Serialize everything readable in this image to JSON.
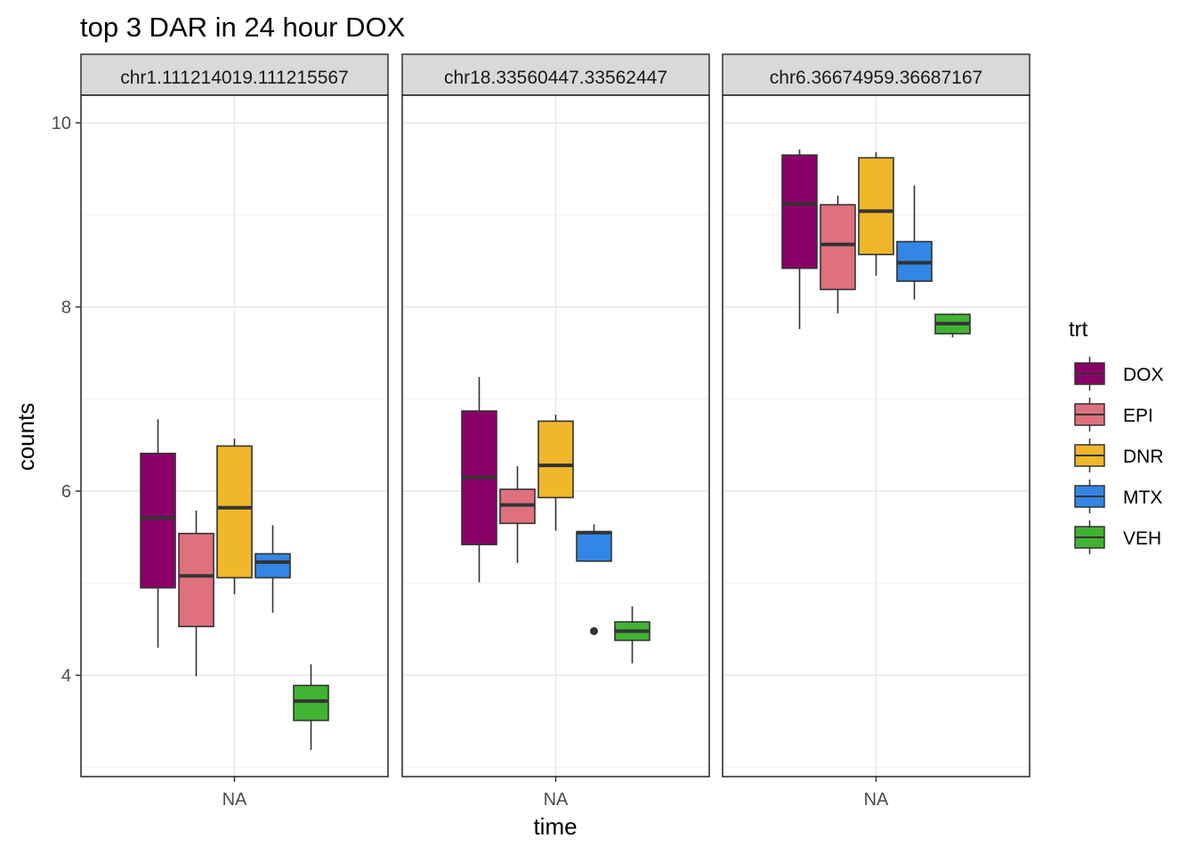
{
  "chart_data": {
    "type": "boxplot",
    "title": "top 3 DAR in 24 hour DOX",
    "xlabel": "time",
    "ylabel": "counts",
    "x_tick_label": "NA",
    "ylim": [
      2.9,
      10.3
    ],
    "y_ticks": [
      4,
      6,
      8,
      10
    ],
    "grid": true,
    "legend": {
      "title": "trt",
      "position": "right",
      "items": [
        {
          "name": "DOX",
          "color": "#8B0068"
        },
        {
          "name": "EPI",
          "color": "#DF707E"
        },
        {
          "name": "DNR",
          "color": "#F1B72B"
        },
        {
          "name": "MTX",
          "color": "#3386E6"
        },
        {
          "name": "VEH",
          "color": "#41B333"
        }
      ]
    },
    "panels": [
      {
        "strip": "chr1.111214019.111215567",
        "boxes": [
          {
            "trt": "DOX",
            "min": 4.3,
            "q1": 4.95,
            "median": 5.71,
            "q3": 6.41,
            "max": 6.78,
            "outliers": []
          },
          {
            "trt": "EPI",
            "min": 3.99,
            "q1": 4.53,
            "median": 5.08,
            "q3": 5.54,
            "max": 5.79,
            "outliers": []
          },
          {
            "trt": "DNR",
            "min": 4.88,
            "q1": 5.06,
            "median": 5.82,
            "q3": 6.49,
            "max": 6.57,
            "outliers": []
          },
          {
            "trt": "MTX",
            "min": 4.68,
            "q1": 5.06,
            "median": 5.23,
            "q3": 5.32,
            "max": 5.63,
            "outliers": []
          },
          {
            "trt": "VEH",
            "min": 3.19,
            "q1": 3.51,
            "median": 3.72,
            "q3": 3.89,
            "max": 4.12,
            "outliers": []
          }
        ]
      },
      {
        "strip": "chr18.33560447.33562447",
        "boxes": [
          {
            "trt": "DOX",
            "min": 5.01,
            "q1": 5.42,
            "median": 6.15,
            "q3": 6.87,
            "max": 7.24,
            "outliers": []
          },
          {
            "trt": "EPI",
            "min": 5.22,
            "q1": 5.65,
            "median": 5.85,
            "q3": 6.02,
            "max": 6.27,
            "outliers": []
          },
          {
            "trt": "DNR",
            "min": 5.57,
            "q1": 5.93,
            "median": 6.28,
            "q3": 6.76,
            "max": 6.83,
            "outliers": []
          },
          {
            "trt": "MTX",
            "min": 5.24,
            "q1": 5.24,
            "median": 5.55,
            "q3": 5.56,
            "max": 5.64,
            "outliers": [
              4.48
            ]
          },
          {
            "trt": "VEH",
            "min": 4.13,
            "q1": 4.38,
            "median": 4.48,
            "q3": 4.58,
            "max": 4.75,
            "outliers": []
          }
        ]
      },
      {
        "strip": "chr6.36674959.36687167",
        "boxes": [
          {
            "trt": "DOX",
            "min": 7.76,
            "q1": 8.42,
            "median": 9.12,
            "q3": 9.65,
            "max": 9.71,
            "outliers": []
          },
          {
            "trt": "EPI",
            "min": 7.93,
            "q1": 8.19,
            "median": 8.68,
            "q3": 9.11,
            "max": 9.21,
            "outliers": []
          },
          {
            "trt": "DNR",
            "min": 8.34,
            "q1": 8.57,
            "median": 9.04,
            "q3": 9.62,
            "max": 9.68,
            "outliers": []
          },
          {
            "trt": "MTX",
            "min": 8.08,
            "q1": 8.28,
            "median": 8.48,
            "q3": 8.71,
            "max": 9.32,
            "outliers": []
          },
          {
            "trt": "VEH",
            "min": 7.67,
            "q1": 7.71,
            "median": 7.82,
            "q3": 7.92,
            "max": 7.93,
            "outliers": []
          }
        ]
      }
    ]
  }
}
